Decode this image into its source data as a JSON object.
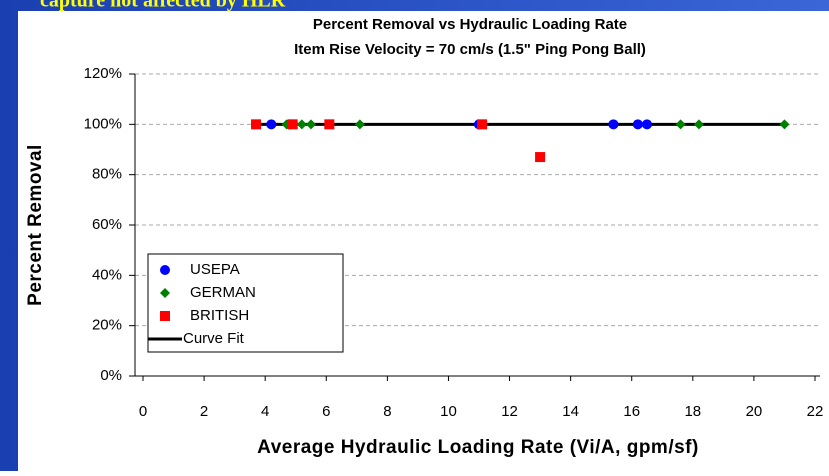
{
  "slide": {
    "heading": "capture not affected by HLR"
  },
  "chart_data": {
    "type": "scatter",
    "title": "Percent Removal vs Hydraulic Loading Rate",
    "subtitle": "Item Rise Velocity = 70 cm/s (1.5\" Ping Pong Ball)",
    "xlabel": "Average Hydraulic Loading Rate (Vi/A, gpm/sf)",
    "ylabel": "Percent Removal",
    "xlim": [
      0,
      22
    ],
    "xticks": [
      0,
      2,
      4,
      6,
      8,
      10,
      12,
      14,
      16,
      18,
      20,
      22
    ],
    "ylim": [
      0,
      120
    ],
    "yticks": [
      {
        "value": 0,
        "label": "0%"
      },
      {
        "value": 20,
        "label": "20%"
      },
      {
        "value": 40,
        "label": "40%"
      },
      {
        "value": 60,
        "label": "60%"
      },
      {
        "value": 80,
        "label": "80%"
      },
      {
        "value": 100,
        "label": "100%"
      },
      {
        "value": 120,
        "label": "120%"
      }
    ],
    "grid": true,
    "legend": "lower left",
    "series": [
      {
        "name": "USEPA",
        "color": "#0000ff",
        "marker": "circle",
        "x": [
          4.2,
          4.8,
          11.0,
          15.4,
          16.2,
          16.5
        ],
        "values": [
          100,
          100,
          100,
          100,
          100,
          100
        ]
      },
      {
        "name": "GERMAN",
        "color": "#008000",
        "marker": "diamond",
        "x": [
          4.7,
          5.2,
          5.5,
          7.1,
          17.6,
          18.2,
          21.0
        ],
        "values": [
          100,
          100,
          100,
          100,
          100,
          100,
          100
        ]
      },
      {
        "name": "BRITISH",
        "color": "#ff0000",
        "marker": "square",
        "x": [
          3.7,
          4.9,
          6.1,
          11.1,
          13.0
        ],
        "values": [
          100,
          100,
          100,
          100,
          87
        ]
      },
      {
        "name": "Curve Fit",
        "color": "#000000",
        "marker": "line",
        "x": [
          3.7,
          21.0
        ],
        "values": [
          100,
          100
        ]
      }
    ]
  }
}
